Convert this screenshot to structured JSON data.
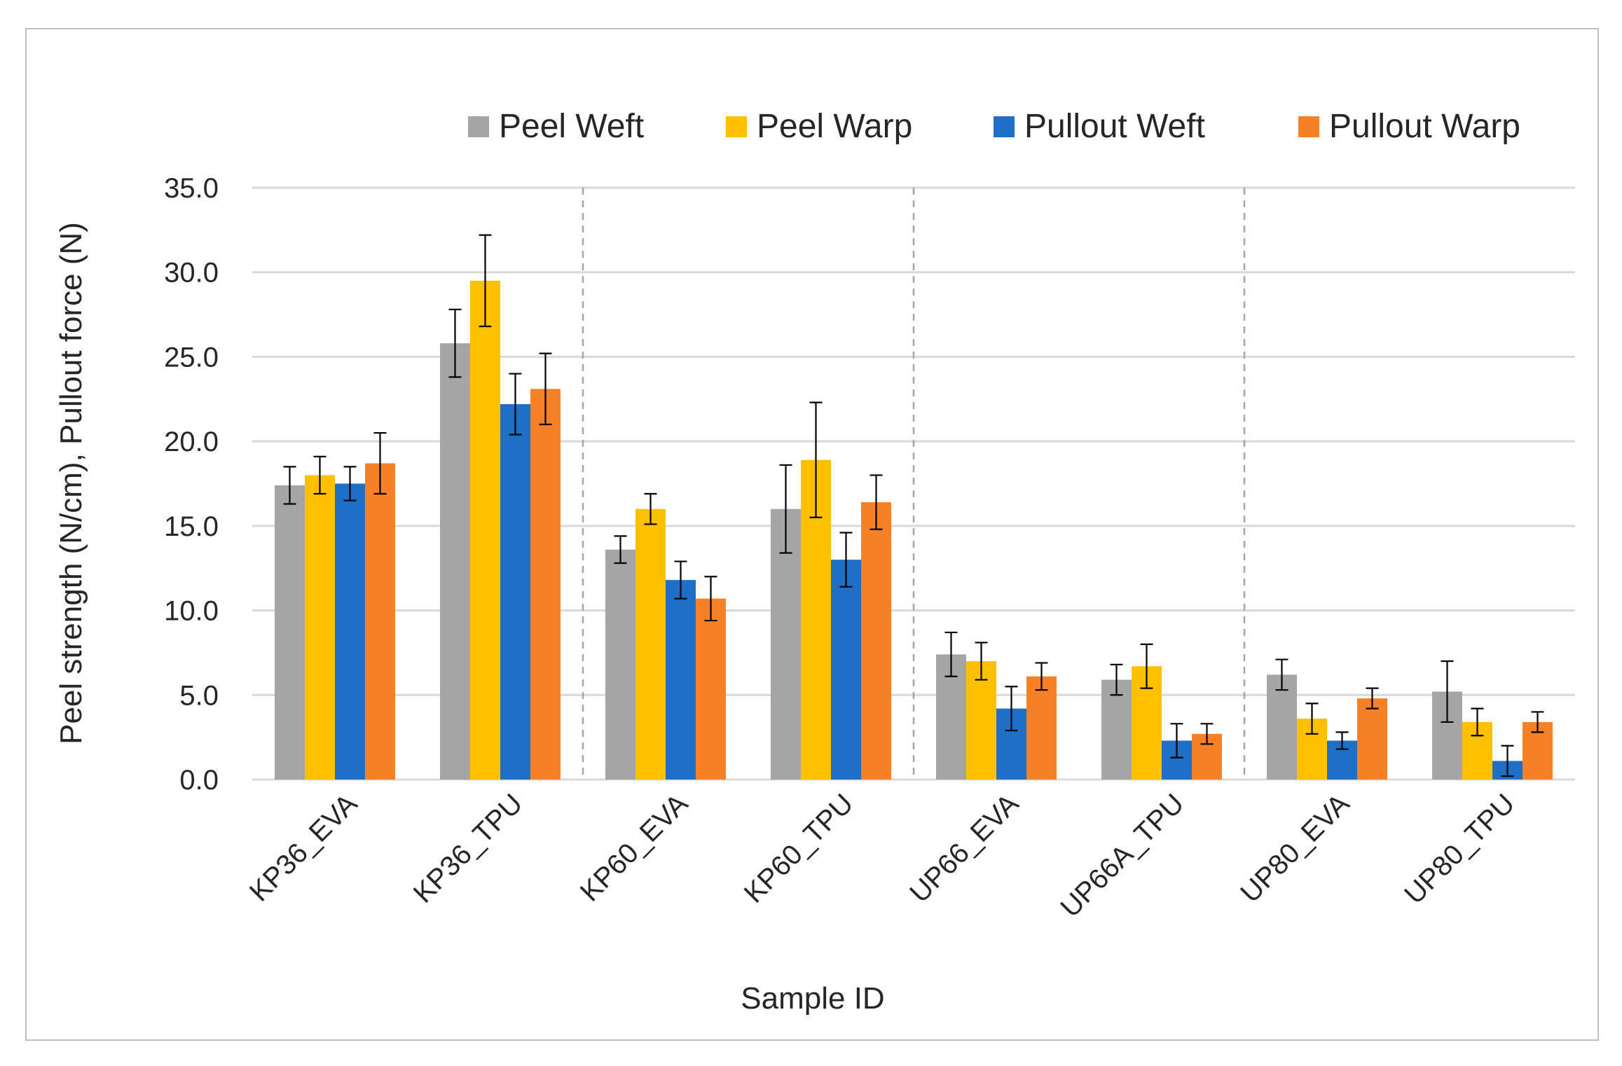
{
  "chart_data": {
    "type": "bar",
    "title": "",
    "xlabel": "Sample ID",
    "ylabel": "Peel strength (N/cm), Pullout force (N)",
    "ylim": [
      0,
      35
    ],
    "yticks": [
      0,
      5,
      10,
      15,
      20,
      25,
      30,
      35
    ],
    "ytick_labels": [
      "0.0",
      "5.0",
      "10.0",
      "15.0",
      "20.0",
      "25.0",
      "30.0",
      "35.0"
    ],
    "grid": true,
    "legend_position": "top",
    "categories": [
      "KP36_EVA",
      "KP36_TPU",
      "KP60_EVA",
      "KP60_TPU",
      "UP66_EVA",
      "UP66A_TPU",
      "UP80_EVA",
      "UP80_TPU"
    ],
    "series": [
      {
        "name": "Peel Weft",
        "color": "#a5a5a5",
        "values": [
          17.4,
          25.8,
          13.6,
          16.0,
          7.4,
          5.9,
          6.2,
          5.2
        ],
        "errors": [
          1.1,
          2.0,
          0.8,
          2.6,
          1.3,
          0.9,
          0.9,
          1.8
        ]
      },
      {
        "name": "Peel Warp",
        "color": "#ffc000",
        "values": [
          18.0,
          29.5,
          16.0,
          18.9,
          7.0,
          6.7,
          3.6,
          3.4
        ],
        "errors": [
          1.1,
          2.7,
          0.9,
          3.4,
          1.1,
          1.3,
          0.9,
          0.8
        ]
      },
      {
        "name": "Pullout Weft",
        "color": "#1f6fc6",
        "values": [
          17.5,
          22.2,
          11.8,
          13.0,
          4.2,
          2.3,
          2.3,
          1.1
        ],
        "errors": [
          1.0,
          1.8,
          1.1,
          1.6,
          1.3,
          1.0,
          0.5,
          0.9
        ]
      },
      {
        "name": "Pullout Warp",
        "color": "#f58025",
        "values": [
          18.7,
          23.1,
          10.7,
          16.4,
          6.1,
          2.7,
          4.8,
          3.4
        ],
        "errors": [
          1.8,
          2.1,
          1.3,
          1.6,
          0.8,
          0.6,
          0.6,
          0.6
        ]
      }
    ],
    "group_separators_after_category": [
      2,
      4,
      6
    ]
  }
}
